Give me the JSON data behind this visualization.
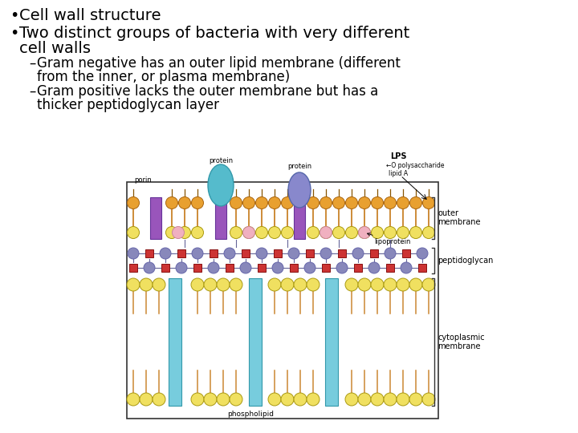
{
  "background_color": "#ffffff",
  "text_color": "#000000",
  "bullet1": "Cell wall structure",
  "bullet2": "Two distinct groups of bacteria with very different\n  cell walls",
  "sub1": "Gram negative has an outer lipid membrane (different\n    from the inner, or plasma membrane)",
  "sub2": "Gram positive lacks the outer membrane but has a\n    thicker peptidoglycan layer",
  "bullet_fontsize": 14,
  "sub_fontsize": 12,
  "orange_color": "#e8a030",
  "yellow_color": "#f0e060",
  "purple_color": "#9955bb",
  "cyan_color": "#55bbcc",
  "blue_oval_color": "#8888cc",
  "pink_color": "#f0b0c0",
  "pep_circle_color": "#8888bb",
  "pep_square_color": "#cc3333",
  "cyto_protein_color": "#77ccdd",
  "connector_color": "#666699",
  "border_color": "#333333",
  "tail_color": "#cc8833",
  "bracket_color": "#333333"
}
